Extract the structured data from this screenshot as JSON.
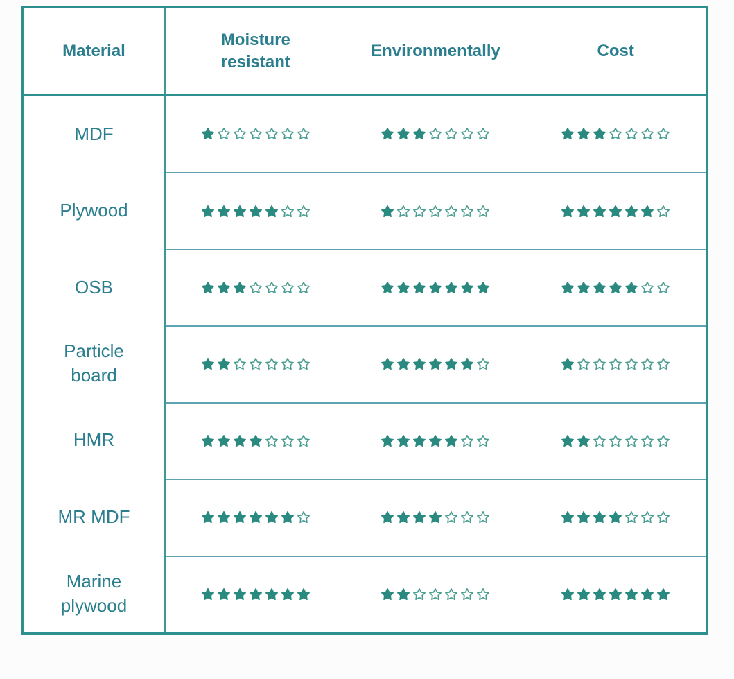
{
  "chart_data": {
    "type": "table",
    "columns": [
      "Material",
      "Moisture resistant",
      "Environmentally",
      "Cost"
    ],
    "max_rating": 7,
    "rating_columns": [
      "Moisture resistant",
      "Environmentally",
      "Cost"
    ],
    "rows": [
      {
        "material": "MDF",
        "ratings": [
          1,
          3,
          3
        ]
      },
      {
        "material": "Plywood",
        "ratings": [
          5,
          1,
          6
        ]
      },
      {
        "material": "OSB",
        "ratings": [
          3,
          7,
          5
        ]
      },
      {
        "material": "Particle board",
        "ratings": [
          2,
          6,
          1
        ]
      },
      {
        "material": "HMR",
        "ratings": [
          4,
          5,
          2
        ]
      },
      {
        "material": "MR MDF",
        "ratings": [
          6,
          4,
          4
        ]
      },
      {
        "material": "Marine plywood",
        "ratings": [
          7,
          2,
          7
        ]
      }
    ]
  },
  "colors": {
    "outer_border": "#2E8F8F",
    "vertical_divider": "#3E9898",
    "row_separator": "#5EA4B3",
    "text": "#2B7E8E",
    "star_filled": "#2A8A80",
    "star_empty_stroke": "#4A9E91",
    "star_empty_fill": "#FFFFFF"
  }
}
